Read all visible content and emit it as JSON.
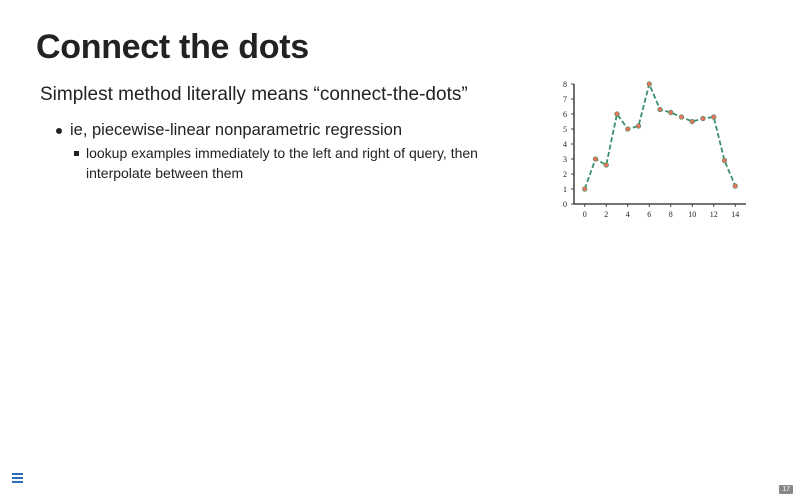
{
  "slide": {
    "title": "Connect the dots",
    "subtitle": "Simplest method literally means “connect-the-dots”",
    "bullets": [
      {
        "text": "ie, piecewise-linear nonparametric regression",
        "sub_bullets": [
          "lookup examples immediately to the left and right of query, then interpolate between them"
        ]
      }
    ],
    "page_number": "17"
  },
  "navigation": {
    "menu_icon": "hamburger-menu-icon"
  },
  "colors": {
    "line": "#3a8f6a",
    "marker": "#e8745a",
    "text": "#222222",
    "menu": "#2a6ebb"
  },
  "chart_data": {
    "type": "line",
    "x": [
      0,
      1,
      2,
      3,
      4,
      5,
      6,
      7,
      8,
      9,
      10,
      11,
      12,
      13,
      14
    ],
    "y": [
      1,
      3,
      2.6,
      6,
      5,
      5.2,
      8,
      6.3,
      6.1,
      5.8,
      5.5,
      5.7,
      5.8,
      2.9,
      1.2
    ],
    "x_ticks": [
      0,
      2,
      4,
      6,
      8,
      10,
      12,
      14
    ],
    "y_ticks": [
      0,
      1,
      2,
      3,
      4,
      5,
      6,
      7,
      8
    ],
    "xlim": [
      -1,
      15
    ],
    "ylim": [
      0,
      8
    ],
    "line_style": "dashed",
    "grid": false
  }
}
